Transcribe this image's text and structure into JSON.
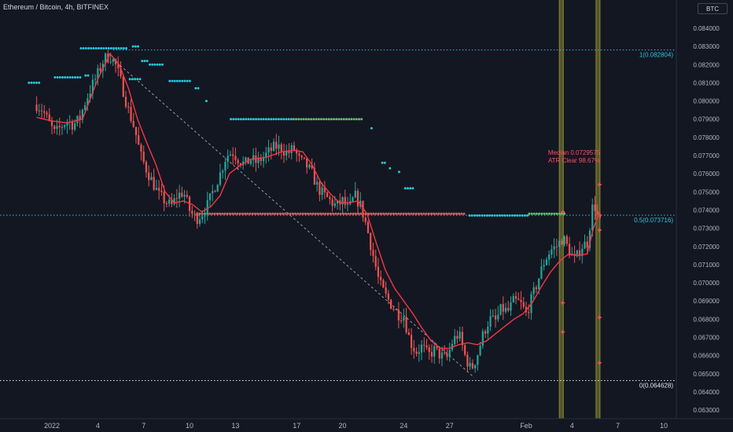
{
  "header": {
    "title": "Ethereum / Bitcoin, 4h, BITFINEX",
    "currency": "BTC"
  },
  "colors": {
    "background": "#131722",
    "up_candle": "#26a69a",
    "down_candle": "#ef5350",
    "trailing_line": "#f23645",
    "fib_line": "#26c6da",
    "support_line": "#e0e3eb",
    "grid_band": "#6b6a2c"
  },
  "chart_data": {
    "type": "candlestick",
    "symbol": "Ethereum / Bitcoin",
    "interval": "4h",
    "exchange": "BITFINEX",
    "y_ticks": [
      0.063,
      0.064,
      0.065,
      0.066,
      0.067,
      0.068,
      0.069,
      0.07,
      0.071,
      0.072,
      0.073,
      0.074,
      0.075,
      0.076,
      0.077,
      0.078,
      0.079,
      0.08,
      0.081,
      0.082,
      0.083,
      0.084
    ],
    "y_tick_labels": [
      "0.063000",
      "0.064000",
      "0.065000",
      "0.066000",
      "0.067000",
      "0.068000",
      "0.069000",
      "0.070000",
      "0.071000",
      "0.072000",
      "0.073000",
      "0.074000",
      "0.075000",
      "0.076000",
      "0.077000",
      "0.078000",
      "0.079000",
      "0.080000",
      "0.081000",
      "0.082000",
      "0.083000",
      "0.084000"
    ],
    "ylim": [
      0.0626,
      0.0848
    ],
    "x_ticks": [
      {
        "label": "2022",
        "day": 1
      },
      {
        "label": "4",
        "day": 4
      },
      {
        "label": "7",
        "day": 7
      },
      {
        "label": "10",
        "day": 10
      },
      {
        "label": "13",
        "day": 13
      },
      {
        "label": "17",
        "day": 17
      },
      {
        "label": "20",
        "day": 20
      },
      {
        "label": "24",
        "day": 24
      },
      {
        "label": "27",
        "day": 27
      },
      {
        "label": "Feb",
        "day": 32
      },
      {
        "label": "4",
        "day": 35
      },
      {
        "label": "7",
        "day": 38
      },
      {
        "label": "10",
        "day": 41
      }
    ],
    "price_path": [
      [
        0.0,
        0.0798
      ],
      [
        0.4,
        0.0795
      ],
      [
        0.8,
        0.0788
      ],
      [
        1.2,
        0.0782
      ],
      [
        1.6,
        0.0786
      ],
      [
        2.0,
        0.0789
      ],
      [
        2.4,
        0.0787
      ],
      [
        2.8,
        0.079
      ],
      [
        3.2,
        0.08
      ],
      [
        3.6,
        0.0808
      ],
      [
        4.0,
        0.0815
      ],
      [
        4.4,
        0.0823
      ],
      [
        4.8,
        0.0825
      ],
      [
        5.2,
        0.0819
      ],
      [
        5.6,
        0.0808
      ],
      [
        6.0,
        0.0795
      ],
      [
        6.4,
        0.0785
      ],
      [
        6.8,
        0.077
      ],
      [
        7.2,
        0.0762
      ],
      [
        7.6,
        0.0755
      ],
      [
        8.0,
        0.0748
      ],
      [
        8.4,
        0.0745
      ],
      [
        8.8,
        0.0742
      ],
      [
        9.2,
        0.0748
      ],
      [
        9.6,
        0.075
      ],
      [
        10.0,
        0.074
      ],
      [
        10.4,
        0.0735
      ],
      [
        10.8,
        0.0738
      ],
      [
        11.2,
        0.0743
      ],
      [
        11.6,
        0.0752
      ],
      [
        12.0,
        0.076
      ],
      [
        12.4,
        0.077
      ],
      [
        12.8,
        0.0772
      ],
      [
        13.2,
        0.0768
      ],
      [
        13.6,
        0.0765
      ],
      [
        14.0,
        0.0768
      ],
      [
        14.4,
        0.0766
      ],
      [
        14.8,
        0.0769
      ],
      [
        15.2,
        0.0772
      ],
      [
        15.6,
        0.0775
      ],
      [
        16.0,
        0.0774
      ],
      [
        16.4,
        0.0771
      ],
      [
        16.8,
        0.0774
      ],
      [
        17.2,
        0.0767
      ],
      [
        17.6,
        0.0765
      ],
      [
        18.0,
        0.076
      ],
      [
        18.4,
        0.0752
      ],
      [
        18.8,
        0.0748
      ],
      [
        19.2,
        0.0745
      ],
      [
        19.6,
        0.0742
      ],
      [
        20.0,
        0.0745
      ],
      [
        20.4,
        0.074
      ],
      [
        20.8,
        0.0748
      ],
      [
        21.2,
        0.0742
      ],
      [
        21.6,
        0.073
      ],
      [
        22.0,
        0.0715
      ],
      [
        22.4,
        0.07
      ],
      [
        22.8,
        0.0693
      ],
      [
        23.2,
        0.0688
      ],
      [
        23.6,
        0.0683
      ],
      [
        24.0,
        0.0682
      ],
      [
        24.4,
        0.0668
      ],
      [
        24.8,
        0.0662
      ],
      [
        25.2,
        0.0665
      ],
      [
        25.6,
        0.066
      ],
      [
        26.0,
        0.0663
      ],
      [
        26.4,
        0.066
      ],
      [
        26.8,
        0.0658
      ],
      [
        27.2,
        0.0668
      ],
      [
        27.6,
        0.0672
      ],
      [
        28.0,
        0.066
      ],
      [
        28.4,
        0.0652
      ],
      [
        28.8,
        0.066
      ],
      [
        29.2,
        0.0672
      ],
      [
        29.6,
        0.068
      ],
      [
        30.0,
        0.0679
      ],
      [
        30.4,
        0.0686
      ],
      [
        30.8,
        0.0684
      ],
      [
        31.2,
        0.069
      ],
      [
        31.6,
        0.0689
      ],
      [
        32.0,
        0.0683
      ],
      [
        32.4,
        0.0692
      ],
      [
        32.8,
        0.0702
      ],
      [
        33.2,
        0.0712
      ],
      [
        33.6,
        0.0718
      ],
      [
        34.0,
        0.072
      ],
      [
        34.4,
        0.0725
      ],
      [
        34.8,
        0.0718
      ],
      [
        35.2,
        0.0712
      ],
      [
        35.6,
        0.072
      ],
      [
        36.0,
        0.0722
      ],
      [
        36.4,
        0.0745
      ],
      [
        36.8,
        0.0733
      ]
    ],
    "trailing_path": [
      [
        0.0,
        0.0791
      ],
      [
        1.0,
        0.0789
      ],
      [
        2.0,
        0.0788
      ],
      [
        3.0,
        0.079
      ],
      [
        4.0,
        0.0812
      ],
      [
        4.8,
        0.0826
      ],
      [
        5.4,
        0.082
      ],
      [
        6.0,
        0.0807
      ],
      [
        6.6,
        0.079
      ],
      [
        7.2,
        0.0777
      ],
      [
        7.8,
        0.0765
      ],
      [
        8.4,
        0.075
      ],
      [
        9.0,
        0.0744
      ],
      [
        9.6,
        0.0745
      ],
      [
        10.2,
        0.0743
      ],
      [
        10.8,
        0.0739
      ],
      [
        11.4,
        0.0742
      ],
      [
        12.0,
        0.0748
      ],
      [
        12.6,
        0.076
      ],
      [
        13.2,
        0.0764
      ],
      [
        14.0,
        0.0768
      ],
      [
        15.0,
        0.0769
      ],
      [
        16.0,
        0.0772
      ],
      [
        16.8,
        0.0773
      ],
      [
        17.4,
        0.0772
      ],
      [
        18.0,
        0.0765
      ],
      [
        18.6,
        0.0755
      ],
      [
        19.2,
        0.0749
      ],
      [
        19.8,
        0.0744
      ],
      [
        20.4,
        0.0744
      ],
      [
        21.0,
        0.0745
      ],
      [
        21.6,
        0.0738
      ],
      [
        22.2,
        0.0722
      ],
      [
        22.8,
        0.0707
      ],
      [
        23.4,
        0.0697
      ],
      [
        24.0,
        0.069
      ],
      [
        24.6,
        0.0683
      ],
      [
        25.2,
        0.0675
      ],
      [
        25.8,
        0.0668
      ],
      [
        26.4,
        0.0664
      ],
      [
        27.0,
        0.0664
      ],
      [
        27.6,
        0.0666
      ],
      [
        28.2,
        0.0667
      ],
      [
        28.8,
        0.0666
      ],
      [
        29.4,
        0.0668
      ],
      [
        30.0,
        0.0672
      ],
      [
        30.6,
        0.0676
      ],
      [
        31.2,
        0.068
      ],
      [
        31.8,
        0.0683
      ],
      [
        32.4,
        0.0689
      ],
      [
        33.0,
        0.0698
      ],
      [
        33.6,
        0.0706
      ],
      [
        34.2,
        0.0712
      ],
      [
        34.8,
        0.0716
      ],
      [
        35.4,
        0.0715
      ],
      [
        36.0,
        0.0716
      ],
      [
        36.4,
        0.073
      ],
      [
        36.8,
        0.0739
      ]
    ],
    "fib_levels": [
      {
        "label": "1(0.082804)",
        "value": 0.082804,
        "color": "#26c6da"
      },
      {
        "label": "0.5(0.073716)",
        "value": 0.073716,
        "color": "#26c6da"
      },
      {
        "label": "0(0.064628)",
        "value": 0.064628,
        "color": "#e0e3eb"
      }
    ],
    "trendline": {
      "from": [
        5.0,
        0.0823
      ],
      "to": [
        28.6,
        0.0648
      ]
    },
    "vertical_bands": [
      {
        "day": 34.3
      },
      {
        "day": 36.7
      }
    ],
    "dot_segments": [
      {
        "y": 0.081,
        "from": -0.5,
        "to": 0.3,
        "color": "#26c6da"
      },
      {
        "y": 0.0813,
        "from": 1.2,
        "to": 3.0,
        "color": "#26c6da"
      },
      {
        "y": 0.0814,
        "from": 3.2,
        "to": 3.5,
        "color": "#26c6da"
      },
      {
        "y": 0.0812,
        "from": 6.1,
        "to": 6.8,
        "color": "#26c6da"
      },
      {
        "y": 0.0829,
        "from": 2.9,
        "to": 6.0,
        "color": "#26c6da"
      },
      {
        "y": 0.083,
        "from": 6.3,
        "to": 6.7,
        "color": "#26c6da"
      },
      {
        "y": 0.0822,
        "from": 6.9,
        "to": 7.3,
        "color": "#26c6da"
      },
      {
        "y": 0.082,
        "from": 7.4,
        "to": 8.3,
        "color": "#26c6da"
      },
      {
        "y": 0.0811,
        "from": 8.7,
        "to": 10.1,
        "color": "#26c6da"
      },
      {
        "y": 0.0807,
        "from": 10.4,
        "to": 10.6,
        "color": "#26c6da"
      },
      {
        "y": 0.08,
        "from": 11.1,
        "to": 11.2,
        "color": "#26c6da"
      },
      {
        "y": 0.079,
        "from": 12.7,
        "to": 16.8,
        "color": "#26c6da"
      },
      {
        "y": 0.079,
        "from": 16.8,
        "to": 21.4,
        "color": "#66bb6a"
      },
      {
        "y": 0.0785,
        "from": 21.9,
        "to": 22.0,
        "color": "#26c6da"
      },
      {
        "y": 0.0766,
        "from": 22.6,
        "to": 22.8,
        "color": "#26c6da"
      },
      {
        "y": 0.0763,
        "from": 23.1,
        "to": 23.2,
        "color": "#26c6da"
      },
      {
        "y": 0.0761,
        "from": 23.7,
        "to": 23.8,
        "color": "#26c6da"
      },
      {
        "y": 0.0752,
        "from": 24.1,
        "to": 24.6,
        "color": "#26c6da"
      },
      {
        "y": 0.0738,
        "from": 10.5,
        "to": 28.0,
        "color": "#f7525f"
      },
      {
        "y": 0.0737,
        "from": 28.3,
        "to": 32.2,
        "color": "#26c6da"
      },
      {
        "y": 0.0738,
        "from": 32.2,
        "to": 34.6,
        "color": "#66bb6a"
      }
    ],
    "markers": [
      {
        "day": 34.4,
        "value": 0.0739,
        "color": "#ef5350"
      },
      {
        "day": 34.4,
        "value": 0.0689,
        "color": "#ef5350"
      },
      {
        "day": 34.4,
        "value": 0.0673,
        "color": "#ef5350"
      },
      {
        "day": 36.8,
        "value": 0.0754,
        "color": "#ef5350"
      },
      {
        "day": 36.8,
        "value": 0.0729,
        "color": "#ef5350"
      },
      {
        "day": 36.8,
        "value": 0.0681,
        "color": "#ef5350"
      },
      {
        "day": 36.8,
        "value": 0.0656,
        "color": "#ef5350"
      }
    ],
    "annotations": [
      "Median 0.0729575",
      "ATR Clear 98.67%"
    ]
  }
}
